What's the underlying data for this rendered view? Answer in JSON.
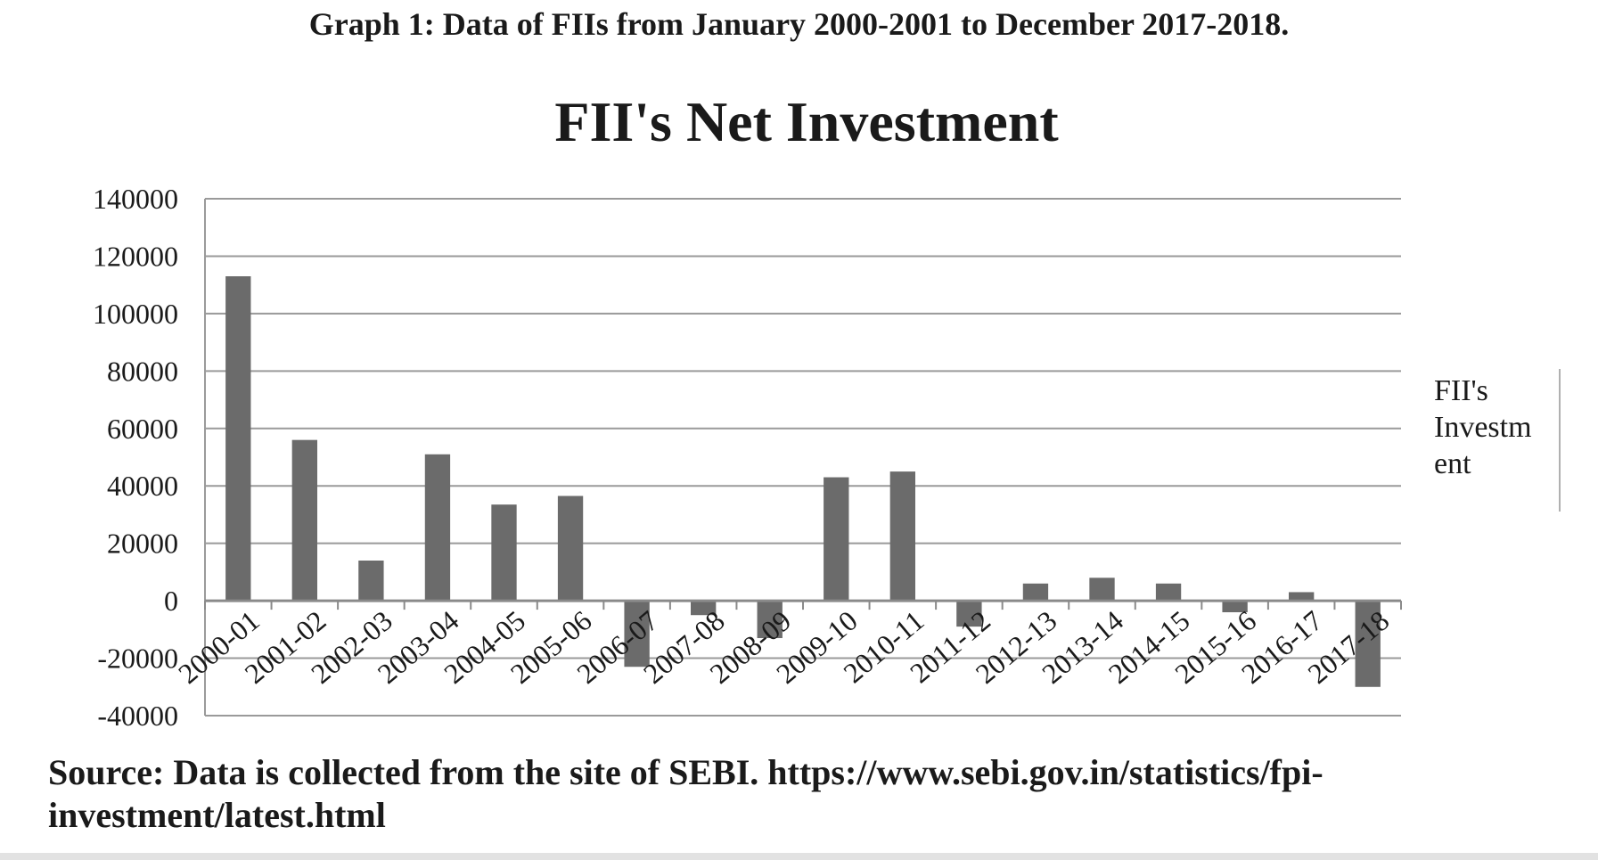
{
  "caption": "Graph 1: Data of FIIs from January 2000-2001 to December 2017-2018.",
  "source": "Source: Data is collected from the site of SEBI. https://www.sebi.gov.in/statistics/fpi-investment/latest.html",
  "chart_data": {
    "type": "bar",
    "title": "FII's Net Investment",
    "xlabel": "",
    "ylabel": "",
    "ylim": [
      -40000,
      140000
    ],
    "yticks": [
      140000,
      120000,
      100000,
      80000,
      60000,
      40000,
      20000,
      0,
      -20000,
      -40000
    ],
    "grid": true,
    "legend": {
      "position": "right",
      "label_lines": [
        "FII's",
        "Investm",
        "ent"
      ]
    },
    "bar_color": "#6b6b6b",
    "categories": [
      "2000-01",
      "2001-02",
      "2002-03",
      "2003-04",
      "2004-05",
      "2005-06",
      "2006-07",
      "2007-08",
      "2008-09",
      "2009-10",
      "2010-11",
      "2011-12",
      "2012-13",
      "2013-14",
      "2014-15",
      "2015-16",
      "2016-17",
      "2017-18"
    ],
    "series": [
      {
        "name": "FII's Investment",
        "values": [
          113000,
          56000,
          14000,
          51000,
          33500,
          36500,
          -23000,
          -5000,
          -13000,
          43000,
          45000,
          -9000,
          6000,
          8000,
          6000,
          -4000,
          3000,
          -30000
        ]
      }
    ]
  }
}
